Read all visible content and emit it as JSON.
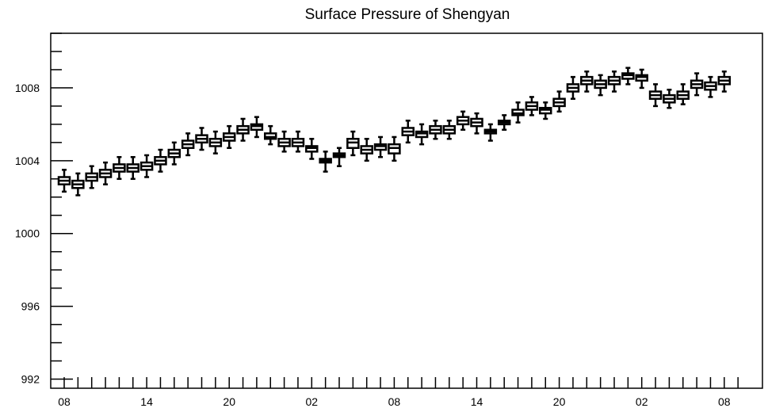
{
  "chart_data": {
    "type": "box",
    "title": "Surface Pressure of Shengyan",
    "xlabel": "",
    "ylabel": "",
    "ylim": [
      991.5,
      1011.0
    ],
    "yticks": [
      992,
      996,
      1000,
      1004,
      1008
    ],
    "y_tick_labels": [
      "992",
      "996",
      "1000",
      "1004",
      "1008"
    ],
    "x_tick_labels": [
      "08",
      "14",
      "20",
      "02",
      "08",
      "14",
      "20",
      "02",
      "08"
    ],
    "x_tick_positions": [
      0,
      6,
      12,
      18,
      24,
      30,
      36,
      42,
      48
    ],
    "grid": false,
    "series": [
      {
        "boxes": [
          {
            "x": 0,
            "min": 1002.3,
            "q1": 1002.7,
            "median": 1002.9,
            "q3": 1003.1,
            "max": 1003.5
          },
          {
            "x": 1,
            "min": 1002.1,
            "q1": 1002.5,
            "median": 1002.7,
            "q3": 1002.9,
            "max": 1003.3
          },
          {
            "x": 2,
            "min": 1002.5,
            "q1": 1002.9,
            "median": 1003.1,
            "q3": 1003.3,
            "max": 1003.7
          },
          {
            "x": 3,
            "min": 1002.7,
            "q1": 1003.1,
            "median": 1003.3,
            "q3": 1003.5,
            "max": 1003.9
          },
          {
            "x": 4,
            "min": 1003.0,
            "q1": 1003.4,
            "median": 1003.6,
            "q3": 1003.8,
            "max": 1004.2
          },
          {
            "x": 5,
            "min": 1003.0,
            "q1": 1003.4,
            "median": 1003.6,
            "q3": 1003.8,
            "max": 1004.2
          },
          {
            "x": 6,
            "min": 1003.1,
            "q1": 1003.5,
            "median": 1003.7,
            "q3": 1003.9,
            "max": 1004.3
          },
          {
            "x": 7,
            "min": 1003.4,
            "q1": 1003.8,
            "median": 1004.0,
            "q3": 1004.2,
            "max": 1004.6
          },
          {
            "x": 8,
            "min": 1003.8,
            "q1": 1004.2,
            "median": 1004.4,
            "q3": 1004.6,
            "max": 1005.0
          },
          {
            "x": 9,
            "min": 1004.3,
            "q1": 1004.7,
            "median": 1004.9,
            "q3": 1005.1,
            "max": 1005.5
          },
          {
            "x": 10,
            "min": 1004.6,
            "q1": 1005.0,
            "median": 1005.2,
            "q3": 1005.4,
            "max": 1005.8
          },
          {
            "x": 11,
            "min": 1004.4,
            "q1": 1004.8,
            "median": 1005.0,
            "q3": 1005.2,
            "max": 1005.6
          },
          {
            "x": 12,
            "min": 1004.7,
            "q1": 1005.1,
            "median": 1005.3,
            "q3": 1005.5,
            "max": 1005.9
          },
          {
            "x": 13,
            "min": 1005.1,
            "q1": 1005.5,
            "median": 1005.7,
            "q3": 1005.9,
            "max": 1006.3
          },
          {
            "x": 14,
            "min": 1005.3,
            "q1": 1005.7,
            "median": 1005.9,
            "q3": 1006.0,
            "max": 1006.4
          },
          {
            "x": 15,
            "min": 1004.9,
            "q1": 1005.2,
            "median": 1005.3,
            "q3": 1005.5,
            "max": 1005.9
          },
          {
            "x": 16,
            "min": 1004.5,
            "q1": 1004.8,
            "median": 1005.0,
            "q3": 1005.2,
            "max": 1005.6
          },
          {
            "x": 17,
            "min": 1004.5,
            "q1": 1004.8,
            "median": 1005.0,
            "q3": 1005.2,
            "max": 1005.6
          },
          {
            "x": 18,
            "min": 1004.1,
            "q1": 1004.5,
            "median": 1004.7,
            "q3": 1004.8,
            "max": 1005.2
          },
          {
            "x": 19,
            "min": 1003.4,
            "q1": 1003.9,
            "median": 1004.0,
            "q3": 1004.1,
            "max": 1004.5
          },
          {
            "x": 20,
            "min": 1003.7,
            "q1": 1004.2,
            "median": 1004.3,
            "q3": 1004.4,
            "max": 1004.7
          },
          {
            "x": 21,
            "min": 1004.3,
            "q1": 1004.7,
            "median": 1005.0,
            "q3": 1005.2,
            "max": 1005.6
          },
          {
            "x": 22,
            "min": 1004.0,
            "q1": 1004.4,
            "median": 1004.6,
            "q3": 1004.8,
            "max": 1005.2
          },
          {
            "x": 23,
            "min": 1004.2,
            "q1": 1004.6,
            "median": 1004.8,
            "q3": 1004.9,
            "max": 1005.3
          },
          {
            "x": 24,
            "min": 1004.0,
            "q1": 1004.4,
            "median": 1004.7,
            "q3": 1004.9,
            "max": 1005.3
          },
          {
            "x": 25,
            "min": 1005.0,
            "q1": 1005.4,
            "median": 1005.6,
            "q3": 1005.8,
            "max": 1006.2
          },
          {
            "x": 26,
            "min": 1004.9,
            "q1": 1005.3,
            "median": 1005.5,
            "q3": 1005.6,
            "max": 1006.0
          },
          {
            "x": 27,
            "min": 1005.2,
            "q1": 1005.5,
            "median": 1005.7,
            "q3": 1005.9,
            "max": 1006.2
          },
          {
            "x": 28,
            "min": 1005.2,
            "q1": 1005.5,
            "median": 1005.7,
            "q3": 1005.9,
            "max": 1006.2
          },
          {
            "x": 29,
            "min": 1005.7,
            "q1": 1006.0,
            "median": 1006.2,
            "q3": 1006.4,
            "max": 1006.7
          },
          {
            "x": 30,
            "min": 1005.5,
            "q1": 1005.9,
            "median": 1006.1,
            "q3": 1006.3,
            "max": 1006.6
          },
          {
            "x": 31,
            "min": 1005.1,
            "q1": 1005.5,
            "median": 1005.6,
            "q3": 1005.7,
            "max": 1006.0
          },
          {
            "x": 32,
            "min": 1005.7,
            "q1": 1006.0,
            "median": 1006.1,
            "q3": 1006.2,
            "max": 1006.5
          },
          {
            "x": 33,
            "min": 1006.1,
            "q1": 1006.5,
            "median": 1006.6,
            "q3": 1006.8,
            "max": 1007.2
          },
          {
            "x": 34,
            "min": 1006.5,
            "q1": 1006.8,
            "median": 1007.0,
            "q3": 1007.2,
            "max": 1007.5
          },
          {
            "x": 35,
            "min": 1006.3,
            "q1": 1006.6,
            "median": 1006.8,
            "q3": 1006.9,
            "max": 1007.2
          },
          {
            "x": 36,
            "min": 1006.7,
            "q1": 1007.0,
            "median": 1007.2,
            "q3": 1007.4,
            "max": 1007.8
          },
          {
            "x": 37,
            "min": 1007.4,
            "q1": 1007.8,
            "median": 1008.0,
            "q3": 1008.2,
            "max": 1008.6
          },
          {
            "x": 38,
            "min": 1007.8,
            "q1": 1008.2,
            "median": 1008.4,
            "q3": 1008.6,
            "max": 1008.9
          },
          {
            "x": 39,
            "min": 1007.6,
            "q1": 1008.0,
            "median": 1008.2,
            "q3": 1008.4,
            "max": 1008.7
          },
          {
            "x": 40,
            "min": 1007.8,
            "q1": 1008.2,
            "median": 1008.4,
            "q3": 1008.6,
            "max": 1008.9
          },
          {
            "x": 41,
            "min": 1008.2,
            "q1": 1008.5,
            "median": 1008.7,
            "q3": 1008.8,
            "max": 1009.1
          },
          {
            "x": 42,
            "min": 1008.0,
            "q1": 1008.4,
            "median": 1008.6,
            "q3": 1008.7,
            "max": 1009.0
          },
          {
            "x": 43,
            "min": 1007.0,
            "q1": 1007.4,
            "median": 1007.6,
            "q3": 1007.8,
            "max": 1008.2
          },
          {
            "x": 44,
            "min": 1006.9,
            "q1": 1007.2,
            "median": 1007.4,
            "q3": 1007.6,
            "max": 1007.9
          },
          {
            "x": 45,
            "min": 1007.1,
            "q1": 1007.4,
            "median": 1007.6,
            "q3": 1007.8,
            "max": 1008.2
          },
          {
            "x": 46,
            "min": 1007.6,
            "q1": 1008.0,
            "median": 1008.2,
            "q3": 1008.4,
            "max": 1008.8
          },
          {
            "x": 47,
            "min": 1007.5,
            "q1": 1007.9,
            "median": 1008.1,
            "q3": 1008.3,
            "max": 1008.6
          },
          {
            "x": 48,
            "min": 1007.8,
            "q1": 1008.2,
            "median": 1008.4,
            "q3": 1008.6,
            "max": 1008.9
          }
        ]
      }
    ],
    "colors": {
      "stroke": "#000000",
      "fill": "#ffffff",
      "background": "#ffffff"
    }
  }
}
